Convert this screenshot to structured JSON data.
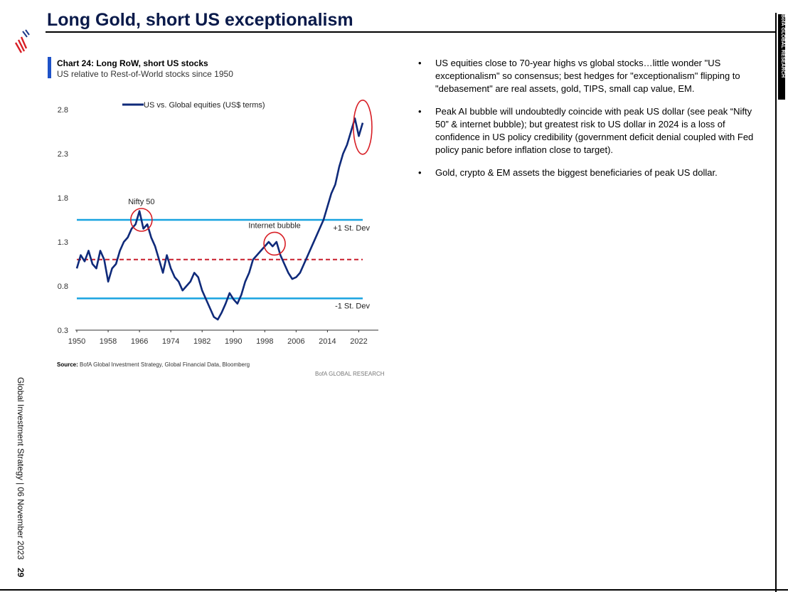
{
  "header": {
    "title": "Long Gold, short US exceptionalism"
  },
  "side": {
    "right_label": "BofA GLOBAL RESEARCH",
    "left_label": "Global Investment Strategy | 06 November 2023",
    "page_number": "29"
  },
  "colors": {
    "series": "#0f2a7a",
    "std_lines": "#19a3e0",
    "mean_line": "#c81e2c",
    "highlight": "#d81f26",
    "accent": "#1e52c8"
  },
  "chart": {
    "label": "Chart 24: Long RoW, short US stocks",
    "subtitle": "US relative to Rest-of-World stocks since 1950",
    "source_label": "Source:",
    "source_text": "BofA Global Investment Strategy, Global Financial Data, Bloomberg",
    "brand": "BofA GLOBAL RESEARCH"
  },
  "chart_data": {
    "type": "line",
    "legend": "US vs. Global equities (US$ terms)",
    "legend_position": "top-center",
    "x_ticks": [
      "1950",
      "1958",
      "1966",
      "1974",
      "1982",
      "1990",
      "1998",
      "2006",
      "2014",
      "2022"
    ],
    "y_ticks": [
      "2.8",
      "2.3",
      "1.8",
      "1.3",
      "0.8",
      "0.3"
    ],
    "xlim": [
      1950,
      2027
    ],
    "ylim": [
      0.3,
      2.8
    ],
    "grid": false,
    "series": [
      {
        "name": "US vs. Global equities (US$ terms)",
        "x": [
          1950,
          1951,
          1952,
          1953,
          1954,
          1955,
          1956,
          1957,
          1958,
          1959,
          1960,
          1961,
          1962,
          1963,
          1964,
          1965,
          1966,
          1967,
          1968,
          1969,
          1970,
          1971,
          1972,
          1973,
          1974,
          1975,
          1976,
          1977,
          1978,
          1979,
          1980,
          1981,
          1982,
          1983,
          1984,
          1985,
          1986,
          1987,
          1988,
          1989,
          1990,
          1991,
          1992,
          1993,
          1994,
          1995,
          1996,
          1997,
          1998,
          1999,
          2000,
          2001,
          2002,
          2003,
          2004,
          2005,
          2006,
          2007,
          2008,
          2009,
          2010,
          2011,
          2012,
          2013,
          2014,
          2015,
          2016,
          2017,
          2018,
          2019,
          2020,
          2021,
          2022,
          2023
        ],
        "y": [
          1.0,
          1.15,
          1.08,
          1.2,
          1.05,
          1.0,
          1.2,
          1.1,
          0.85,
          1.0,
          1.05,
          1.2,
          1.3,
          1.35,
          1.45,
          1.5,
          1.65,
          1.45,
          1.5,
          1.35,
          1.25,
          1.1,
          0.95,
          1.15,
          1.0,
          0.9,
          0.85,
          0.75,
          0.8,
          0.85,
          0.95,
          0.9,
          0.75,
          0.65,
          0.55,
          0.45,
          0.42,
          0.5,
          0.6,
          0.72,
          0.65,
          0.6,
          0.7,
          0.85,
          0.95,
          1.1,
          1.15,
          1.2,
          1.25,
          1.3,
          1.25,
          1.3,
          1.15,
          1.05,
          0.95,
          0.88,
          0.9,
          0.95,
          1.05,
          1.15,
          1.25,
          1.35,
          1.45,
          1.55,
          1.7,
          1.85,
          1.95,
          2.15,
          2.3,
          2.4,
          2.55,
          2.7,
          2.5,
          2.65
        ]
      }
    ],
    "reference_lines": [
      {
        "label": "+1 St. Dev",
        "y": 1.55
      },
      {
        "label": "",
        "y": 1.1
      },
      {
        "label": "-1 St. Dev",
        "y": 0.66
      }
    ],
    "annotations": [
      {
        "label": "Nifty 50",
        "x": 1966.5,
        "y": 1.55
      },
      {
        "label": "Internet bubble",
        "x": 2000.5,
        "y": 1.28
      },
      {
        "label": "",
        "x": 2023,
        "y": 2.6
      }
    ]
  },
  "bullets": [
    "US equities close to 70-year highs vs global stocks…little wonder \"US exceptionalism\" so consensus; best hedges for \"exceptionalism\" flipping to \"debasement\" are real assets, gold, TIPS, small cap value, EM.",
    "Peak AI bubble will undoubtedly coincide with peak US dollar (see peak “Nifty 50” & internet bubble); but greatest risk to US dollar in 2024 is a loss of confidence in US policy credibility (government deficit denial coupled with Fed policy panic before inflation close to target).",
    "Gold, crypto & EM assets the biggest beneficiaries of peak US dollar."
  ],
  "bullet_glyph": "•"
}
